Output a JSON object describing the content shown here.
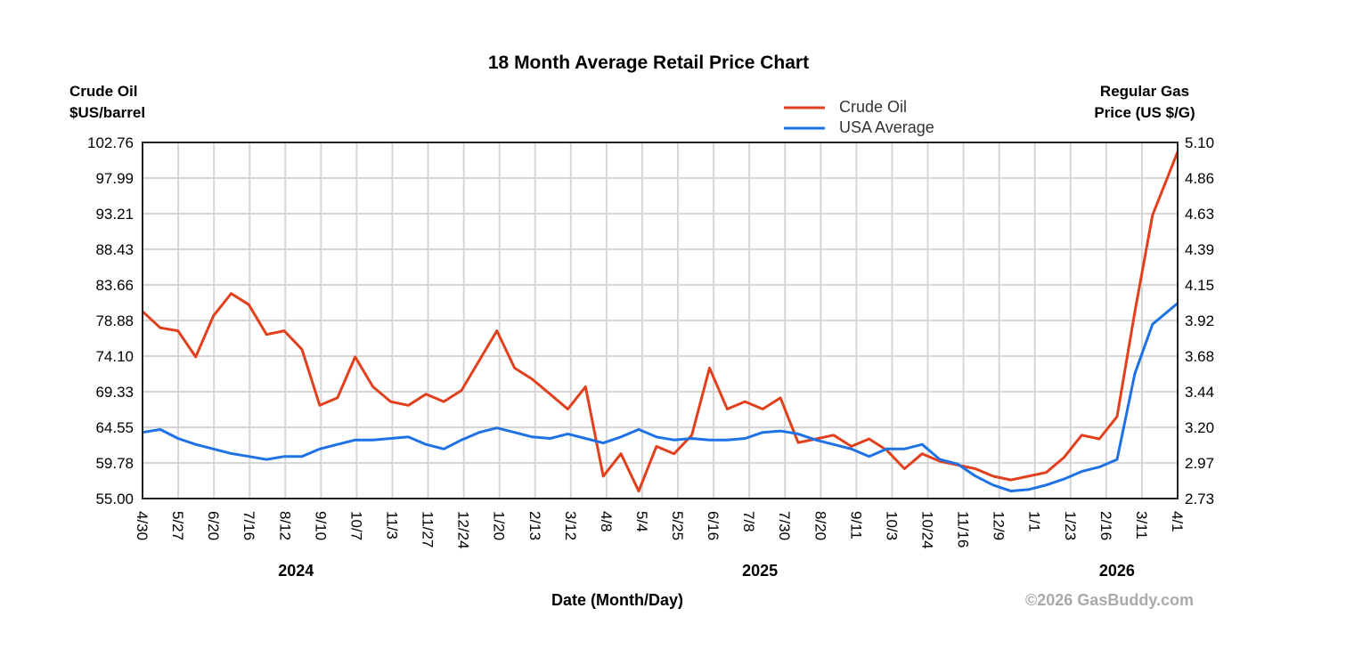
{
  "chart_data": {
    "type": "line",
    "title": "18 Month Average Retail Price Chart",
    "xlabel": "Date (Month/Day)",
    "ylabel_left": [
      "Crude Oil",
      "$US/barrel"
    ],
    "ylabel_right": [
      "Regular Gas",
      "Price (US $/G)"
    ],
    "ylim_left": [
      55.0,
      102.76
    ],
    "ylim_right": [
      2.73,
      5.1
    ],
    "yticks_left": [
      "102.76",
      "97.99",
      "93.21",
      "88.43",
      "83.66",
      "78.88",
      "74.10",
      "69.33",
      "64.55",
      "59.78",
      "55.00"
    ],
    "yticks_right": [
      "5.10",
      "4.86",
      "4.63",
      "4.39",
      "4.15",
      "3.92",
      "3.68",
      "3.44",
      "3.20",
      "2.97",
      "2.73"
    ],
    "xticks": [
      "4/30",
      "5/27",
      "6/20",
      "7/16",
      "8/12",
      "9/10",
      "10/7",
      "11/3",
      "11/27",
      "12/24",
      "1/20",
      "2/13",
      "3/12",
      "4/8",
      "5/4",
      "5/25",
      "6/16",
      "7/8",
      "7/30",
      "8/20",
      "9/11",
      "10/3",
      "10/24",
      "11/16",
      "12/9",
      "1/1",
      "1/23",
      "2/16",
      "3/11",
      "4/1"
    ],
    "years": [
      {
        "label": "2024",
        "at": "8/12"
      },
      {
        "label": "2025",
        "at": "7/8"
      },
      {
        "label": "2026",
        "at": "2/16"
      }
    ],
    "grid": true,
    "legend_position": "top-right",
    "x": [
      "2024-04-30",
      "2024-05-12",
      "2024-05-24",
      "2024-06-05",
      "2024-06-17",
      "2024-06-29",
      "2024-07-11",
      "2024-07-23",
      "2024-08-04",
      "2024-08-16",
      "2024-08-28",
      "2024-09-09",
      "2024-09-21",
      "2024-10-03",
      "2024-10-15",
      "2024-10-27",
      "2024-11-08",
      "2024-11-20",
      "2024-12-02",
      "2024-12-14",
      "2024-12-26",
      "2025-01-07",
      "2025-01-19",
      "2025-01-31",
      "2025-02-12",
      "2025-02-24",
      "2025-03-08",
      "2025-03-20",
      "2025-04-01",
      "2025-04-13",
      "2025-04-25",
      "2025-05-07",
      "2025-05-19",
      "2025-05-31",
      "2025-06-12",
      "2025-06-24",
      "2025-07-06",
      "2025-07-18",
      "2025-07-30",
      "2025-08-11",
      "2025-08-23",
      "2025-09-04",
      "2025-09-16",
      "2025-09-28",
      "2025-10-10",
      "2025-10-22",
      "2025-11-03",
      "2025-11-15",
      "2025-11-27",
      "2025-12-09",
      "2025-12-21",
      "2026-01-02",
      "2026-01-14",
      "2026-01-26",
      "2026-02-07",
      "2026-02-19",
      "2026-03-03",
      "2026-03-15",
      "2026-04-01"
    ],
    "series": [
      {
        "name": "Crude Oil",
        "axis": "left",
        "color": "#e2401c",
        "values": [
          80.1,
          77.9,
          77.5,
          74.0,
          79.5,
          82.5,
          81.0,
          77.0,
          77.5,
          75.0,
          67.5,
          68.5,
          74.0,
          70.0,
          68.0,
          67.5,
          69.0,
          68.0,
          69.5,
          73.5,
          77.5,
          72.5,
          71.0,
          69.0,
          67.0,
          70.0,
          58.0,
          61.0,
          56.0,
          62.0,
          61.0,
          63.5,
          72.5,
          67.0,
          68.0,
          67.0,
          68.5,
          62.5,
          63.0,
          63.5,
          62.0,
          63.0,
          61.5,
          59.0,
          61.0,
          60.0,
          59.5,
          59.0,
          58.0,
          57.5,
          58.0,
          58.5,
          60.5,
          63.5,
          63.0,
          66.0,
          80.0,
          93.0,
          101.5
        ]
      },
      {
        "name": "USA Average",
        "axis": "right",
        "color": "#1f72e6",
        "values": [
          3.17,
          3.19,
          3.13,
          3.09,
          3.06,
          3.03,
          3.01,
          2.99,
          3.01,
          3.01,
          3.06,
          3.09,
          3.12,
          3.12,
          3.13,
          3.14,
          3.09,
          3.06,
          3.12,
          3.17,
          3.2,
          3.17,
          3.14,
          3.13,
          3.16,
          3.13,
          3.1,
          3.14,
          3.19,
          3.14,
          3.12,
          3.13,
          3.12,
          3.12,
          3.13,
          3.17,
          3.18,
          3.16,
          3.12,
          3.09,
          3.06,
          3.01,
          3.06,
          3.06,
          3.09,
          2.99,
          2.96,
          2.88,
          2.82,
          2.78,
          2.79,
          2.82,
          2.86,
          2.91,
          2.94,
          2.99,
          3.56,
          3.89,
          4.03
        ]
      }
    ]
  },
  "credit": "©2026 GasBuddy.com"
}
